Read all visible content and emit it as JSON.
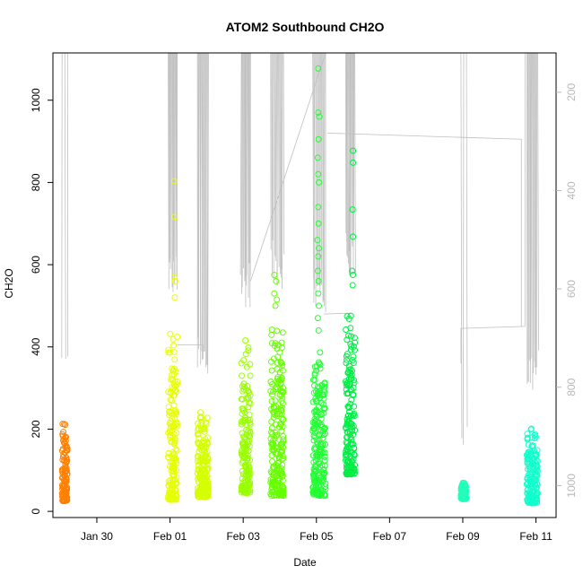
{
  "chart_data": {
    "type": "scatter",
    "title": "ATOM2 Southbound CH2O",
    "xlabel": "Date",
    "ylabel": "CH2O",
    "x_unit": "days since Jan 30",
    "xlim": [
      -1.2,
      12.55
    ],
    "ylim": [
      -15,
      1115
    ],
    "y_ticks": [
      0,
      200,
      400,
      600,
      800,
      1000
    ],
    "x_ticks": [
      {
        "value": 0,
        "label": "Jan 30"
      },
      {
        "value": 2,
        "label": "Feb 01"
      },
      {
        "value": 4,
        "label": "Feb 03"
      },
      {
        "value": 6,
        "label": "Feb 05"
      },
      {
        "value": 8,
        "label": "Feb 07"
      },
      {
        "value": 10,
        "label": "Feb 09"
      },
      {
        "value": 12,
        "label": "Feb 11"
      }
    ],
    "right_axis": {
      "ticks": [
        200,
        400,
        600,
        800,
        1000
      ],
      "range": [
        120,
        1065
      ],
      "color": "#b8b8b8"
    },
    "grid": false,
    "series": [
      {
        "color": "#ff8000",
        "x_start": -0.95,
        "x_end": -0.8,
        "y_min": 25,
        "y_max": 235,
        "outliers": []
      },
      {
        "color": "#e6ff00",
        "x_start": 1.95,
        "x_end": 2.2,
        "y_min": 28,
        "y_max": 460,
        "outliers": [
          [
            2.12,
            803
          ],
          [
            2.13,
            716
          ],
          [
            2.12,
            570
          ],
          [
            2.14,
            560
          ],
          [
            2.13,
            520
          ]
        ]
      },
      {
        "color": "#d4ff00",
        "x_start": 2.75,
        "x_end": 3.05,
        "y_min": 35,
        "y_max": 245,
        "outliers": []
      },
      {
        "color": "#99ff00",
        "x_start": 3.95,
        "x_end": 4.2,
        "y_min": 45,
        "y_max": 435,
        "outliers": []
      },
      {
        "color": "#66ff00",
        "x_start": 4.75,
        "x_end": 5.1,
        "y_min": 38,
        "y_max": 480,
        "outliers": [
          [
            4.85,
            575
          ],
          [
            4.9,
            560
          ],
          [
            4.85,
            530
          ],
          [
            4.92,
            515
          ],
          [
            4.88,
            500
          ]
        ]
      },
      {
        "color": "#22ff33",
        "x_start": 5.9,
        "x_end": 6.25,
        "y_min": 38,
        "y_max": 410,
        "outliers": [
          [
            6.05,
            1077
          ],
          [
            6.05,
            970
          ],
          [
            6.08,
            960
          ],
          [
            6.06,
            905
          ],
          [
            6.04,
            860
          ],
          [
            6.05,
            820
          ],
          [
            6.07,
            800
          ],
          [
            6.05,
            740
          ],
          [
            6.06,
            700
          ],
          [
            6.03,
            660
          ],
          [
            6.07,
            640
          ],
          [
            6.05,
            620
          ],
          [
            6.04,
            585
          ],
          [
            6.06,
            560
          ],
          [
            6.05,
            530
          ],
          [
            6.07,
            500
          ],
          [
            6.04,
            470
          ],
          [
            6.06,
            440
          ]
        ]
      },
      {
        "color": "#00ee44",
        "x_start": 6.8,
        "x_end": 7.05,
        "y_min": 90,
        "y_max": 500,
        "outliers": [
          [
            7.0,
            877
          ],
          [
            7.0,
            848
          ],
          [
            6.99,
            734
          ],
          [
            7.0,
            668
          ],
          [
            6.98,
            585
          ],
          [
            7.0,
            575
          ],
          [
            6.99,
            550
          ]
        ]
      },
      {
        "color": "#22ffbb",
        "x_start": 9.95,
        "x_end": 10.1,
        "y_min": 30,
        "y_max": 75,
        "outliers": []
      },
      {
        "color": "#11ffcc",
        "x_start": 11.75,
        "x_end": 12.05,
        "y_min": 20,
        "y_max": 220,
        "outliers": []
      }
    ],
    "altitude_lines_color": "#bfbfbf"
  }
}
